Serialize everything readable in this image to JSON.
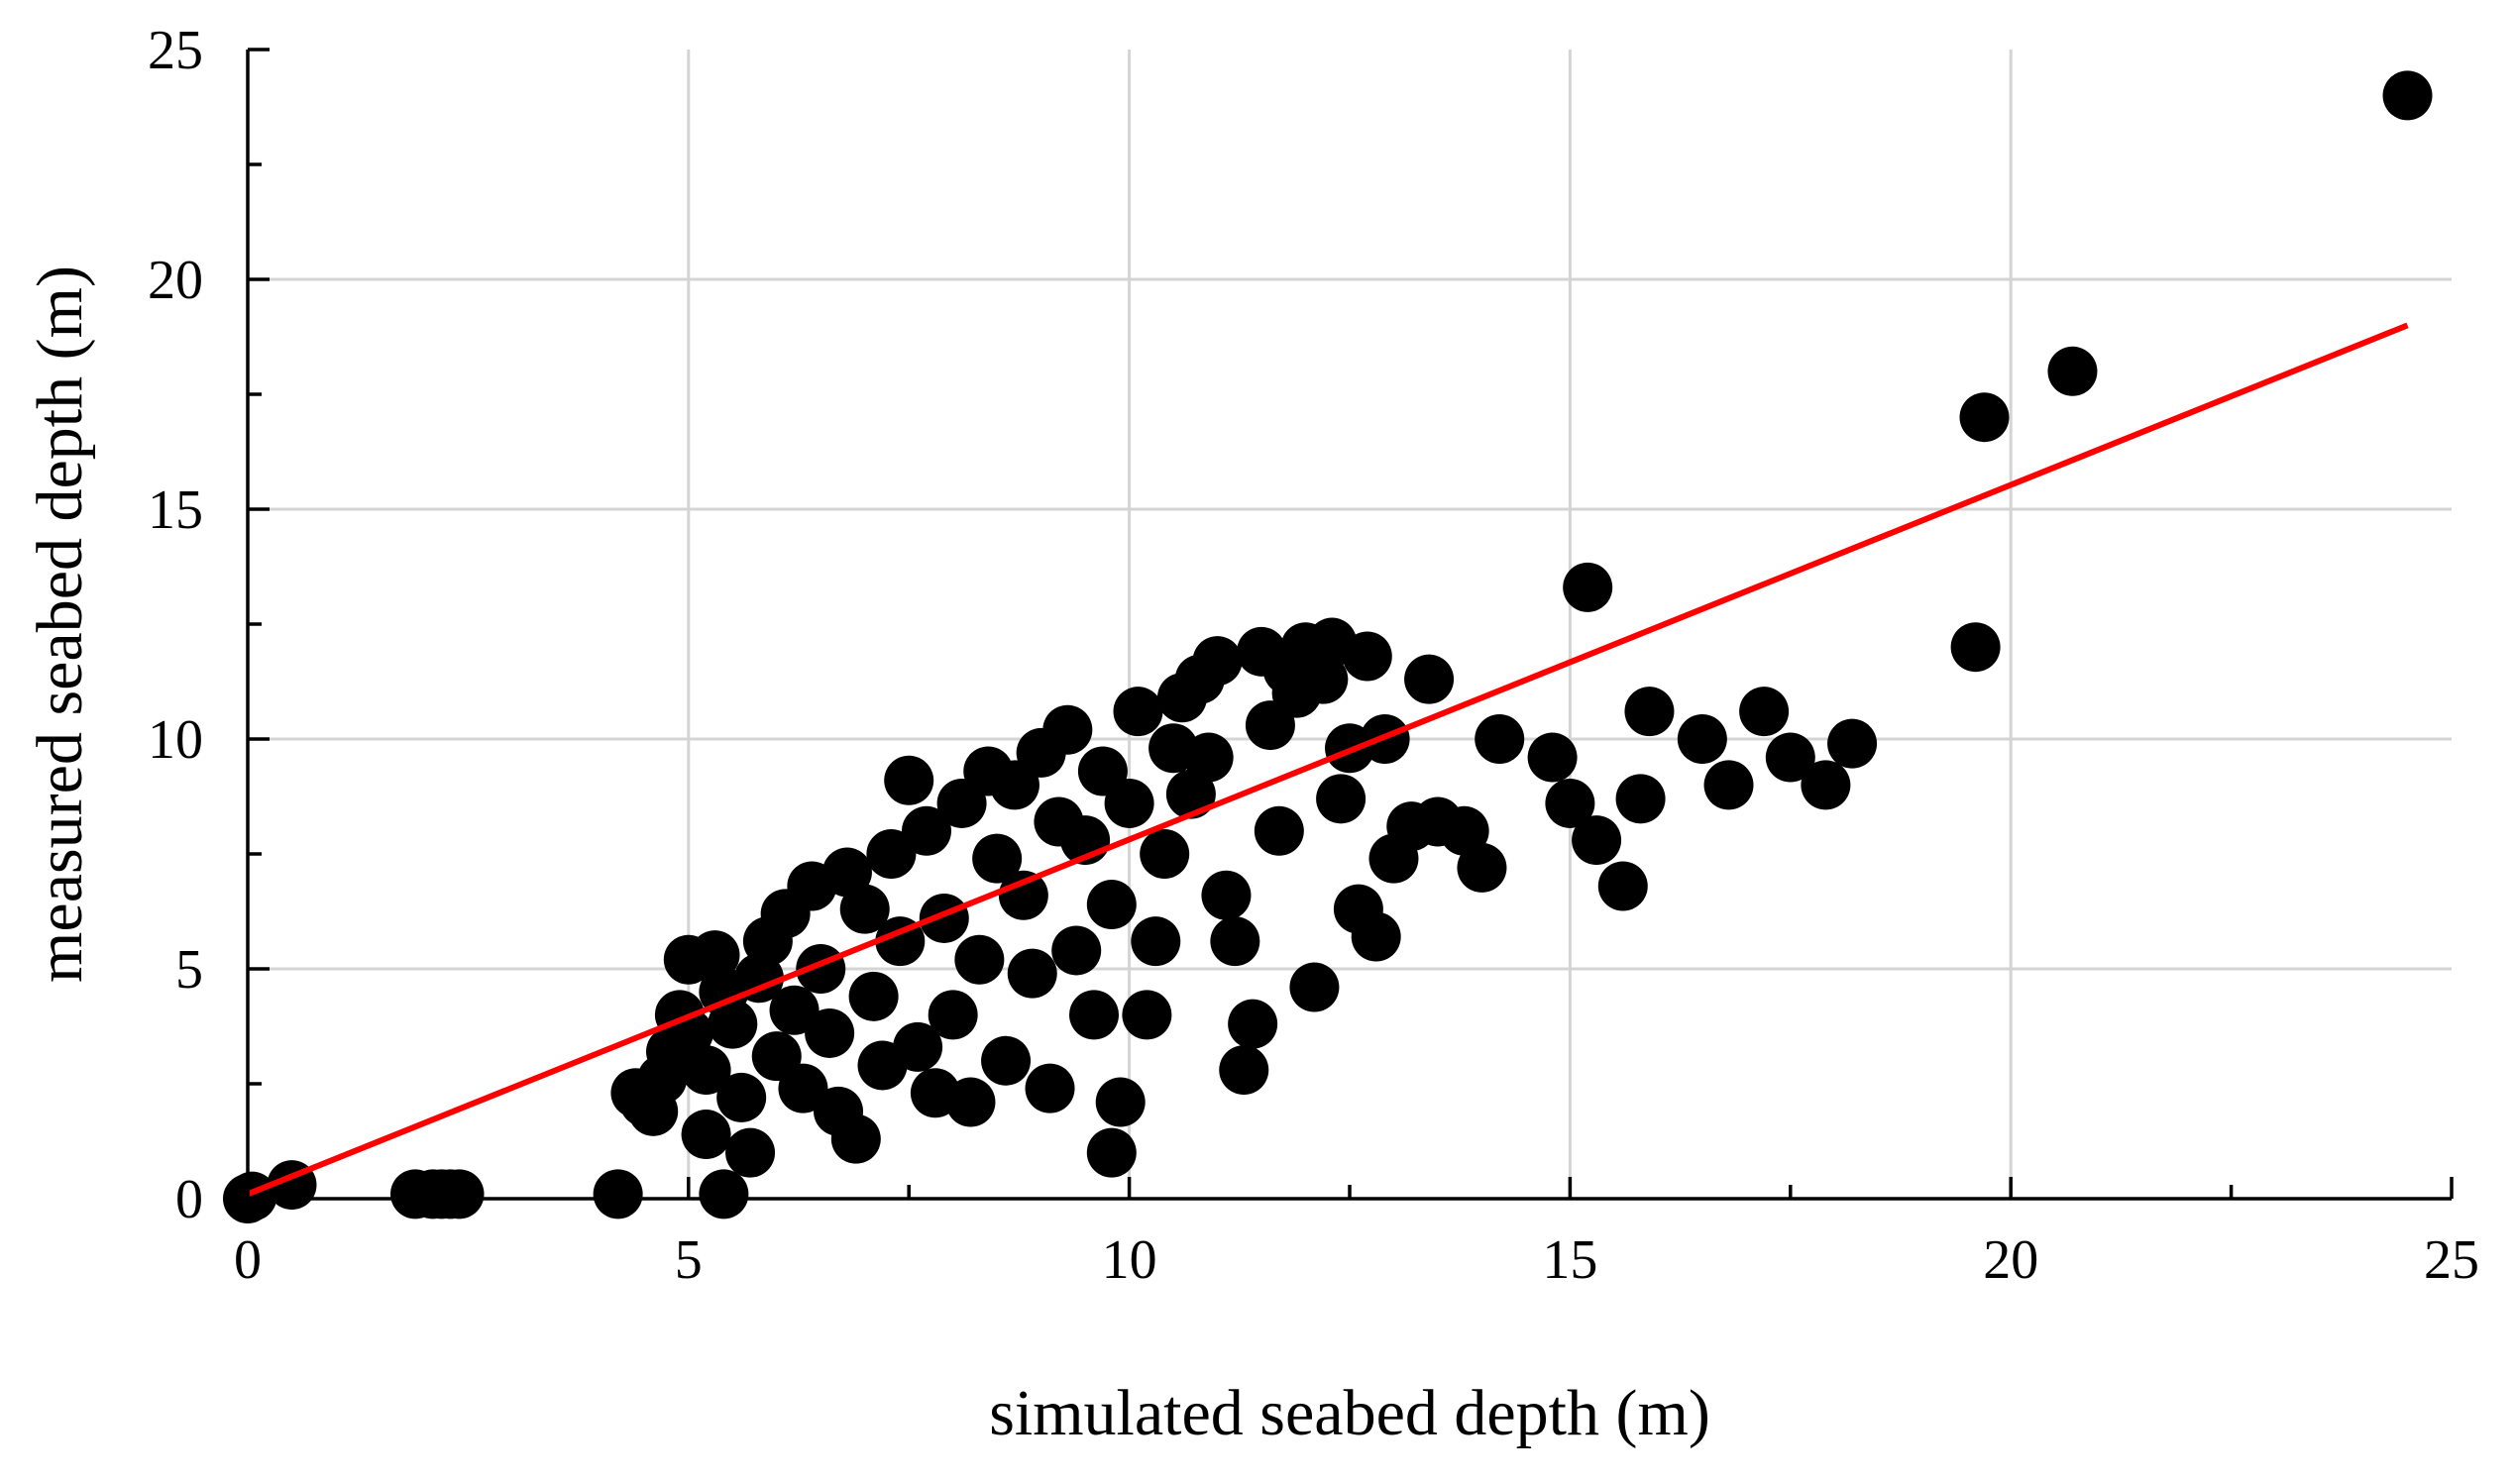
{
  "chart_data": {
    "type": "scatter",
    "title": "",
    "xlabel": "simulated seabed depth (m)",
    "ylabel": "measured seabed depth (m)",
    "xlim": [
      0,
      25
    ],
    "ylim": [
      0,
      25
    ],
    "xticks": [
      "0",
      "5",
      "10",
      "15",
      "20",
      "25"
    ],
    "yticks": [
      "0",
      "5",
      "10",
      "15",
      "20",
      "25"
    ],
    "grid": true,
    "legend": "none",
    "colors": {
      "points": "#000000",
      "fit_line": "#ff0000",
      "grid": "#d4d4d4"
    },
    "fit_line": {
      "x": [
        0,
        24.5
      ],
      "y": [
        0.1,
        19.0
      ]
    },
    "series": [
      {
        "points": [
          [
            0.0,
            0.0
          ],
          [
            0.05,
            0.05
          ],
          [
            0.5,
            0.3
          ],
          [
            1.9,
            0.1
          ],
          [
            2.1,
            0.1
          ],
          [
            2.2,
            0.1
          ],
          [
            2.3,
            0.1
          ],
          [
            2.4,
            0.1
          ],
          [
            4.2,
            0.1
          ],
          [
            5.4,
            0.1
          ],
          [
            9.8,
            1.0
          ],
          [
            4.4,
            2.3
          ],
          [
            4.5,
            2.1
          ],
          [
            4.6,
            1.9
          ],
          [
            4.7,
            2.6
          ],
          [
            4.8,
            3.2
          ],
          [
            4.9,
            4.0
          ],
          [
            5.0,
            5.2
          ],
          [
            5.0,
            3.6
          ],
          [
            5.2,
            2.8
          ],
          [
            5.2,
            1.4
          ],
          [
            5.3,
            5.3
          ],
          [
            5.4,
            4.5
          ],
          [
            5.5,
            3.8
          ],
          [
            5.6,
            2.2
          ],
          [
            5.7,
            1.0
          ],
          [
            5.8,
            4.8
          ],
          [
            5.9,
            5.6
          ],
          [
            6.0,
            3.1
          ],
          [
            6.1,
            6.2
          ],
          [
            6.2,
            4.1
          ],
          [
            6.3,
            2.4
          ],
          [
            6.4,
            6.8
          ],
          [
            6.5,
            5.0
          ],
          [
            6.6,
            3.6
          ],
          [
            6.7,
            1.9
          ],
          [
            6.8,
            7.1
          ],
          [
            6.9,
            1.3
          ],
          [
            7.0,
            6.3
          ],
          [
            7.1,
            4.4
          ],
          [
            7.2,
            2.9
          ],
          [
            7.3,
            7.5
          ],
          [
            7.4,
            5.6
          ],
          [
            7.5,
            9.1
          ],
          [
            7.6,
            3.3
          ],
          [
            7.7,
            8.0
          ],
          [
            7.8,
            2.3
          ],
          [
            7.9,
            6.1
          ],
          [
            8.0,
            4.0
          ],
          [
            8.1,
            8.6
          ],
          [
            8.2,
            2.1
          ],
          [
            8.3,
            5.2
          ],
          [
            8.4,
            9.3
          ],
          [
            8.5,
            7.4
          ],
          [
            8.6,
            3.0
          ],
          [
            8.7,
            9.0
          ],
          [
            8.8,
            6.6
          ],
          [
            8.9,
            4.9
          ],
          [
            9.0,
            9.7
          ],
          [
            9.1,
            2.4
          ],
          [
            9.2,
            8.2
          ],
          [
            9.3,
            10.2
          ],
          [
            9.4,
            5.4
          ],
          [
            9.5,
            7.8
          ],
          [
            9.6,
            4.0
          ],
          [
            9.7,
            9.3
          ],
          [
            9.8,
            6.4
          ],
          [
            9.9,
            2.1
          ],
          [
            10.0,
            8.6
          ],
          [
            10.1,
            10.6
          ],
          [
            10.2,
            4.0
          ],
          [
            10.3,
            5.6
          ],
          [
            10.4,
            7.5
          ],
          [
            10.5,
            9.8
          ],
          [
            10.6,
            10.9
          ],
          [
            10.7,
            8.8
          ],
          [
            10.8,
            11.3
          ],
          [
            10.9,
            9.6
          ],
          [
            11.0,
            11.7
          ],
          [
            11.1,
            6.6
          ],
          [
            11.2,
            5.6
          ],
          [
            11.3,
            2.8
          ],
          [
            11.4,
            3.8
          ],
          [
            11.5,
            11.9
          ],
          [
            11.6,
            10.3
          ],
          [
            11.7,
            8.0
          ],
          [
            11.8,
            11.5
          ],
          [
            11.9,
            11.0
          ],
          [
            12.0,
            12.0
          ],
          [
            12.1,
            4.6
          ],
          [
            12.2,
            11.3
          ],
          [
            12.3,
            12.1
          ],
          [
            12.4,
            8.7
          ],
          [
            12.5,
            9.8
          ],
          [
            12.6,
            6.3
          ],
          [
            12.7,
            11.8
          ],
          [
            12.8,
            5.7
          ],
          [
            12.9,
            10.0
          ],
          [
            13.0,
            7.4
          ],
          [
            13.2,
            8.1
          ],
          [
            13.4,
            11.3
          ],
          [
            13.5,
            8.2
          ],
          [
            13.8,
            8.0
          ],
          [
            14.0,
            7.2
          ],
          [
            14.2,
            10.0
          ],
          [
            14.8,
            9.6
          ],
          [
            15.0,
            8.6
          ],
          [
            15.2,
            13.3
          ],
          [
            15.3,
            7.8
          ],
          [
            15.6,
            6.8
          ],
          [
            15.8,
            8.7
          ],
          [
            15.9,
            10.6
          ],
          [
            16.5,
            10.0
          ],
          [
            16.8,
            9.0
          ],
          [
            17.2,
            10.6
          ],
          [
            17.5,
            9.6
          ],
          [
            17.9,
            9.0
          ],
          [
            18.2,
            9.9
          ],
          [
            19.6,
            12.0
          ],
          [
            19.7,
            17.0
          ],
          [
            20.7,
            18.0
          ],
          [
            24.5,
            24.0
          ]
        ]
      }
    ]
  }
}
